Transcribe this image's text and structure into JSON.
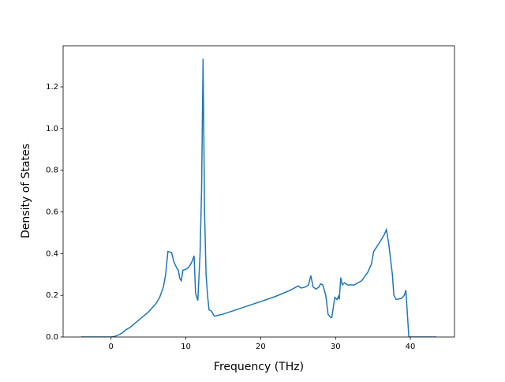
{
  "chart_data": {
    "type": "line",
    "xlabel": "Frequency (THz)",
    "ylabel": "Density of States",
    "color": "#1f77b4",
    "x": [
      -4,
      0,
      0.5,
      1,
      1.5,
      2,
      2.5,
      3,
      4,
      5,
      6,
      6.5,
      7,
      7.3,
      7.6,
      8.1,
      8.4,
      8.8,
      9.0,
      9.2,
      9.4,
      9.6,
      10,
      10.4,
      10.8,
      11.1,
      11.3,
      11.6,
      11.9,
      12.1,
      12.3,
      12.5,
      12.7,
      12.9,
      13.1,
      13.4,
      13.8,
      15,
      20,
      22,
      24,
      25,
      25.4,
      26,
      26.4,
      26.7,
      27,
      27.4,
      27.8,
      28,
      28.3,
      28.7,
      29,
      29.3,
      29.5,
      29.9,
      30.2,
      30.4,
      30.5,
      30.7,
      30.9,
      31.2,
      31.6,
      32.5,
      33.5,
      34.3,
      34.8,
      35.1,
      36,
      36.5,
      36.8,
      37.1,
      37.6,
      37.8,
      38.1,
      38.8,
      39.2,
      39.4,
      39.8,
      43.5
    ],
    "values": [
      0,
      0,
      0.003,
      0.01,
      0.02,
      0.035,
      0.045,
      0.06,
      0.09,
      0.12,
      0.16,
      0.19,
      0.24,
      0.3,
      0.41,
      0.405,
      0.36,
      0.33,
      0.32,
      0.28,
      0.27,
      0.32,
      0.325,
      0.335,
      0.36,
      0.39,
      0.21,
      0.175,
      0.4,
      0.7,
      1.335,
      0.6,
      0.3,
      0.2,
      0.13,
      0.125,
      0.1,
      0.11,
      0.17,
      0.195,
      0.225,
      0.245,
      0.235,
      0.24,
      0.25,
      0.295,
      0.24,
      0.23,
      0.24,
      0.255,
      0.25,
      0.2,
      0.11,
      0.095,
      0.093,
      0.19,
      0.18,
      0.195,
      0.18,
      0.285,
      0.25,
      0.26,
      0.25,
      0.25,
      0.27,
      0.31,
      0.35,
      0.41,
      0.46,
      0.49,
      0.515,
      0.45,
      0.3,
      0.2,
      0.18,
      0.185,
      0.2,
      0.225,
      0,
      0
    ],
    "xlim": [
      -6.4,
      45.9
    ],
    "ylim": [
      0,
      1.397
    ],
    "xticks": [
      0,
      10,
      20,
      30,
      40
    ],
    "yticks": [
      {
        "value": 0,
        "label": "0.0"
      },
      0.2,
      0.4,
      0.6,
      0.8,
      {
        "value": 1,
        "label": "1.0"
      },
      1.2
    ]
  }
}
